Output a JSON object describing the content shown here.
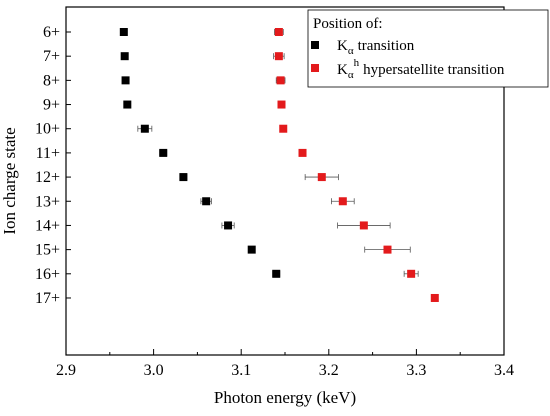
{
  "chart_data": {
    "type": "scatter",
    "title": "",
    "xlabel": "Photon energy (keV)",
    "ylabel": "Ion charge state",
    "xlim": [
      2.9,
      3.4
    ],
    "x_ticks": [
      "2.9",
      "3.0",
      "3.1",
      "3.2",
      "3.3",
      "3.4"
    ],
    "x_tick_values": [
      2.9,
      3.0,
      3.1,
      3.2,
      3.3,
      3.4
    ],
    "categories": [
      "6+",
      "7+",
      "8+",
      "9+",
      "10+",
      "11+",
      "12+",
      "13+",
      "14+",
      "15+",
      "16+",
      "17+"
    ],
    "grid": false,
    "legend": {
      "placement": "top-right",
      "title": "Position of:",
      "entries": [
        {
          "symbol": "K",
          "subscript": "α",
          "superscript": "",
          "text": "transition"
        },
        {
          "symbol": "K",
          "subscript": "α",
          "superscript": "h",
          "text": "hypersatellite transition"
        }
      ]
    },
    "series": [
      {
        "color": "#000000",
        "points": [
          {
            "charge": "6+",
            "x": 2.966,
            "err": 0
          },
          {
            "charge": "7+",
            "x": 2.967,
            "err": 0
          },
          {
            "charge": "8+",
            "x": 2.968,
            "err": 0
          },
          {
            "charge": "9+",
            "x": 2.97,
            "err": 0
          },
          {
            "charge": "10+",
            "x": 2.99,
            "err": 0.008
          },
          {
            "charge": "11+",
            "x": 3.011,
            "err": 0.004
          },
          {
            "charge": "12+",
            "x": 3.034,
            "err": 0.004
          },
          {
            "charge": "13+",
            "x": 3.06,
            "err": 0.006
          },
          {
            "charge": "14+",
            "x": 3.085,
            "err": 0.007
          },
          {
            "charge": "15+",
            "x": 3.112,
            "err": 0
          },
          {
            "charge": "16+",
            "x": 3.14,
            "err": 0.004
          }
        ]
      },
      {
        "color": "#e31a1c",
        "points": [
          {
            "charge": "6+",
            "x": 3.143,
            "err": 0.005
          },
          {
            "charge": "7+",
            "x": 3.143,
            "err": 0.006
          },
          {
            "charge": "8+",
            "x": 3.145,
            "err": 0.005
          },
          {
            "charge": "9+",
            "x": 3.146,
            "err": 0.004
          },
          {
            "charge": "10+",
            "x": 3.148,
            "err": 0.002
          },
          {
            "charge": "11+",
            "x": 3.17,
            "err": 0.004
          },
          {
            "charge": "12+",
            "x": 3.192,
            "err": 0.019
          },
          {
            "charge": "13+",
            "x": 3.216,
            "err": 0.013
          },
          {
            "charge": "14+",
            "x": 3.24,
            "err": 0.03
          },
          {
            "charge": "15+",
            "x": 3.267,
            "err": 0.026
          },
          {
            "charge": "16+",
            "x": 3.294,
            "err": 0.008
          },
          {
            "charge": "17+",
            "x": 3.321,
            "err": 0
          }
        ]
      }
    ]
  }
}
